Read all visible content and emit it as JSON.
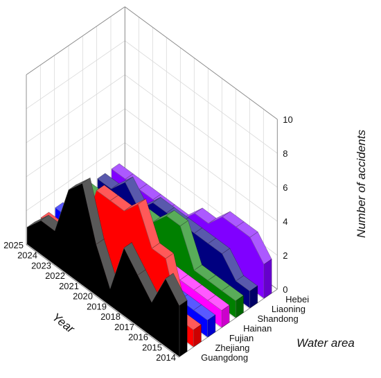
{
  "chart_data": {
    "type": "area",
    "view": "3d-waterfall",
    "xlabel": "Year",
    "ylabel": "Water area",
    "zlabel": "Number of accidents",
    "years": [
      2014,
      2015,
      2016,
      2017,
      2018,
      2019,
      2020,
      2021,
      2022,
      2023,
      2024,
      2025
    ],
    "zlim": [
      0,
      10
    ],
    "z_ticks": [
      "0",
      "2",
      "4",
      "6",
      "8",
      "10"
    ],
    "grid": true,
    "series": [
      {
        "name": "Guangdong",
        "color": "#000000",
        "values": [
          3,
          4,
          2,
          3,
          4,
          1,
          3,
          6,
          5,
          2,
          2,
          1
        ]
      },
      {
        "name": "Zhejiang",
        "color": "#ff0000",
        "values": [
          1,
          1,
          4,
          4,
          6,
          5,
          5,
          5,
          2,
          2,
          1,
          1
        ]
      },
      {
        "name": "Fujian",
        "color": "#0000ff",
        "values": [
          1,
          1,
          1,
          1,
          1,
          1,
          1,
          1,
          1,
          1,
          1,
          1
        ]
      },
      {
        "name": "Hainan",
        "color": "#ff00ff",
        "values": [
          1,
          1,
          1,
          1,
          1,
          1,
          1,
          1,
          1,
          1,
          1,
          1
        ]
      },
      {
        "name": "Shandong",
        "color": "#008000",
        "values": [
          1,
          1,
          1,
          1,
          3,
          3,
          2,
          2,
          1,
          1,
          1,
          1
        ]
      },
      {
        "name": "Liaoning",
        "color": "#000080",
        "values": [
          1,
          1,
          2,
          2,
          2,
          2,
          2,
          2,
          1,
          2,
          1,
          1
        ]
      },
      {
        "name": "Hebei",
        "color": "#8000ff",
        "values": [
          2,
          3,
          3,
          3,
          2,
          2,
          1,
          1,
          1,
          1,
          1,
          1
        ]
      }
    ]
  }
}
